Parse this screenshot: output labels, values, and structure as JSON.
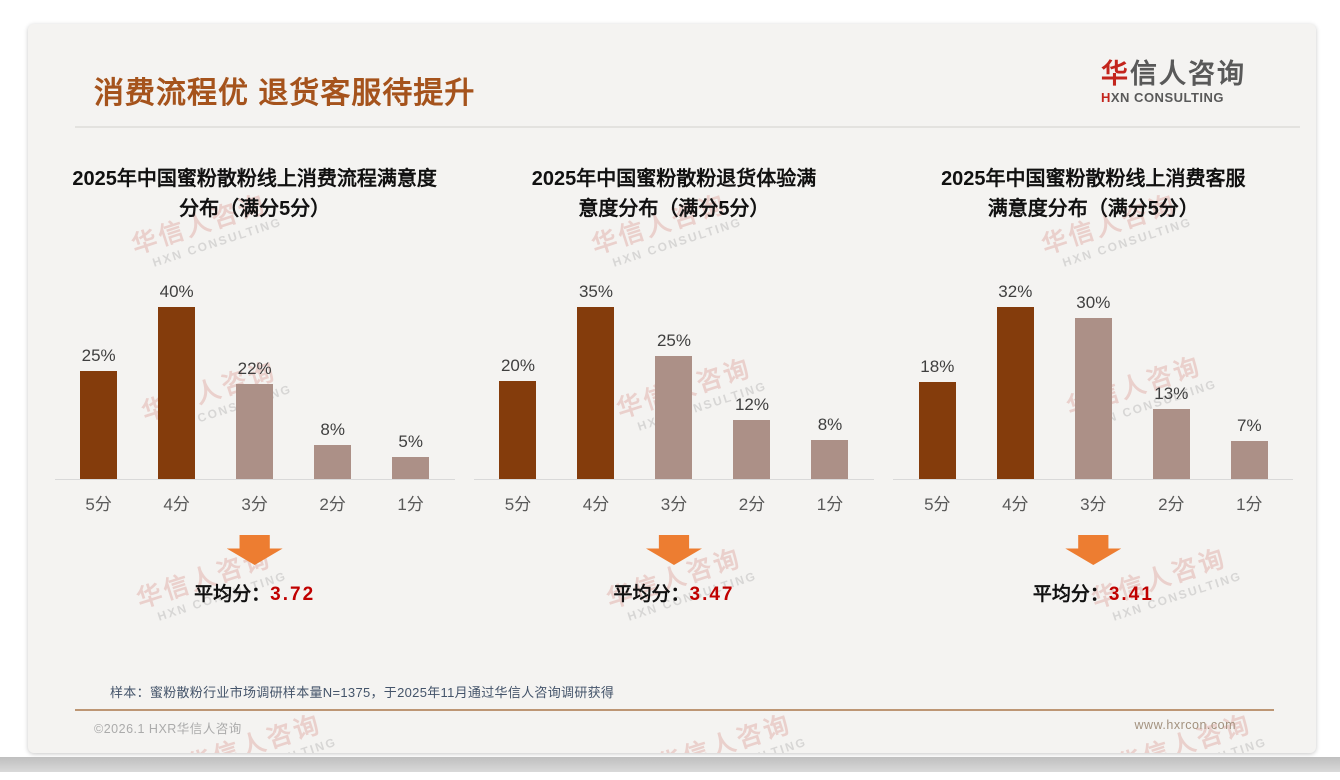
{
  "slide": {
    "title": "消费流程优 退货客服待提升",
    "logo": {
      "name_red": "华",
      "name_rest": "信人咨询",
      "tagline_red": "H",
      "tagline_rest": "XN CONSULTING"
    },
    "sample_note": "样本：蜜粉散粉行业市场调研样本量N=1375，于2025年11月通过华信人咨询调研获得",
    "footer": {
      "left": "©2026.1 HXR华信人咨询",
      "right": "www.hxrcon.com"
    },
    "watermark": {
      "cn": "华信人咨询",
      "en": "HXN CONSULTING"
    }
  },
  "colors": {
    "accent_title": "#a5531c",
    "bar_dark": "#843c0c",
    "bar_light": "#ac9087",
    "arrow": "#ed7d31",
    "avg_value": "#c00000"
  },
  "chart_data": [
    {
      "type": "bar",
      "title": "2025年中国蜜粉散粉线上消费流程满意度分布（满分5分）",
      "title_lines": [
        "2025年中国蜜粉散粉线上消费流程满意度",
        "分布（满分5分）"
      ],
      "categories": [
        "5分",
        "4分",
        "3分",
        "2分",
        "1分"
      ],
      "values": [
        25,
        40,
        22,
        8,
        5
      ],
      "unit": "%",
      "bar_colors": [
        "#843c0c",
        "#843c0c",
        "#ac9087",
        "#ac9087",
        "#ac9087"
      ],
      "ylim": [
        0,
        45
      ],
      "grid": false,
      "legend": false,
      "average_label": "平均分：",
      "average_value": "3.72"
    },
    {
      "type": "bar",
      "title": "2025年中国蜜粉散粉退货体验满意度分布（满分5分）",
      "title_lines": [
        "2025年中国蜜粉散粉退货体验满",
        "意度分布（满分5分）"
      ],
      "categories": [
        "5分",
        "4分",
        "3分",
        "2分",
        "1分"
      ],
      "values": [
        20,
        35,
        25,
        12,
        8
      ],
      "unit": "%",
      "bar_colors": [
        "#843c0c",
        "#843c0c",
        "#ac9087",
        "#ac9087",
        "#ac9087"
      ],
      "ylim": [
        0,
        40
      ],
      "grid": false,
      "legend": false,
      "average_label": "平均分：",
      "average_value": "3.47"
    },
    {
      "type": "bar",
      "title": "2025年中国蜜粉散粉线上消费客服满意度分布（满分5分）",
      "title_lines": [
        "2025年中国蜜粉散粉线上消费客服",
        "满意度分布（满分5分）"
      ],
      "categories": [
        "5分",
        "4分",
        "3分",
        "2分",
        "1分"
      ],
      "values": [
        18,
        32,
        30,
        13,
        7
      ],
      "unit": "%",
      "bar_colors": [
        "#843c0c",
        "#843c0c",
        "#ac9087",
        "#ac9087",
        "#ac9087"
      ],
      "ylim": [
        0,
        35
      ],
      "grid": false,
      "legend": false,
      "average_label": "平均分：",
      "average_value": "3.41"
    }
  ]
}
